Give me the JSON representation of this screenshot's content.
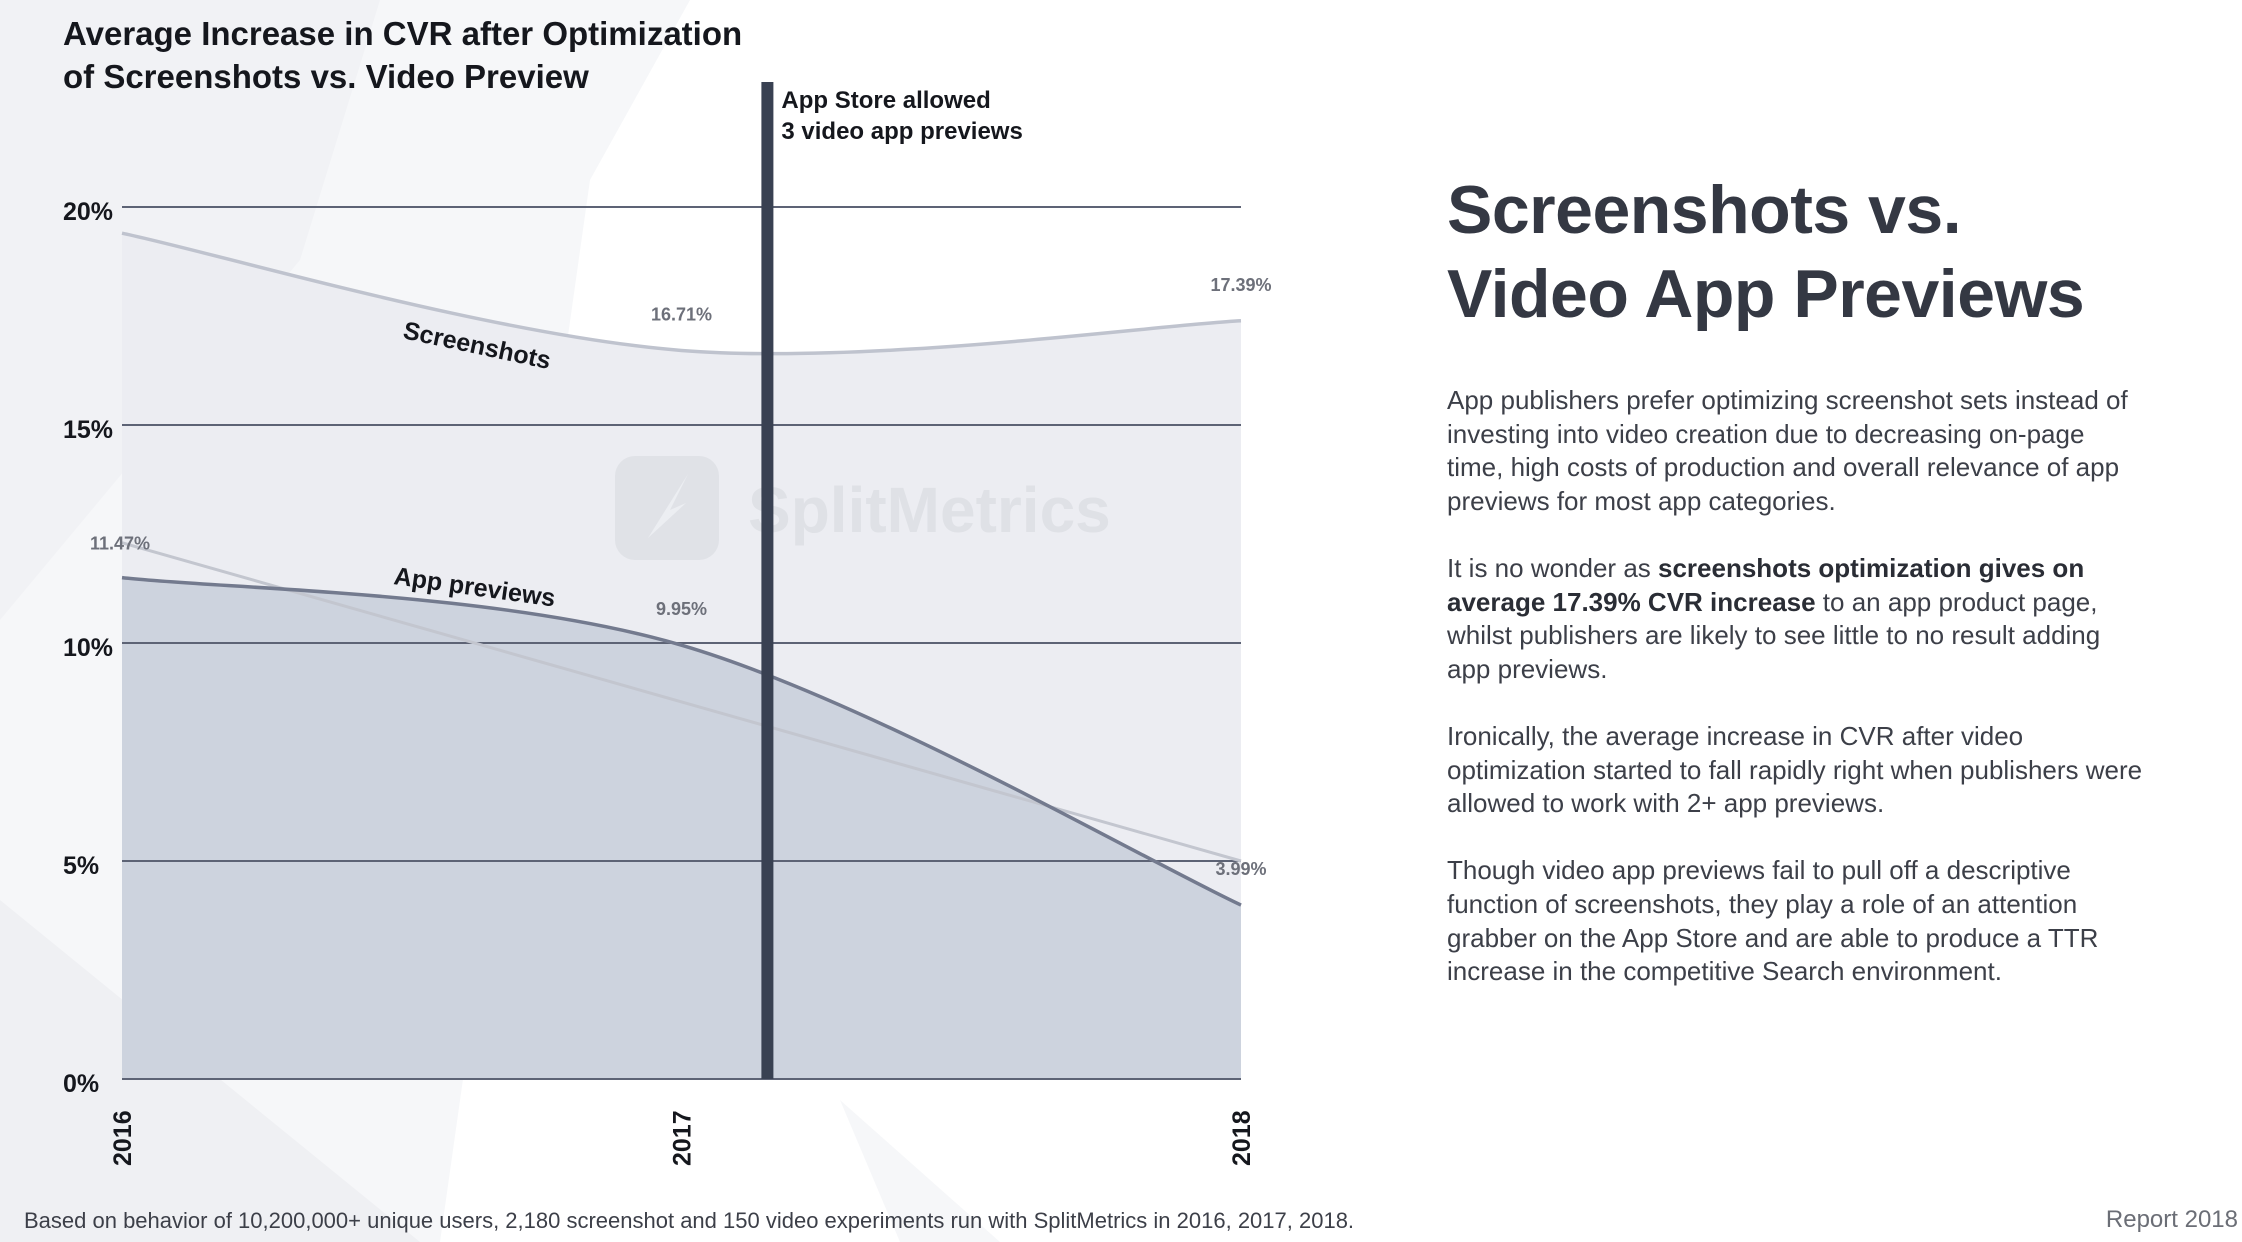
{
  "chart_data": {
    "type": "area",
    "title": "Average Increase in CVR after Optimization of Screenshots vs. Video Preview",
    "title_lines": [
      "Average Increase in CVR after Optimization",
      "of Screenshots vs. Video Preview"
    ],
    "categories": [
      "2016",
      "2017",
      "2018"
    ],
    "ylim": [
      0,
      20
    ],
    "yticks": [
      "0%",
      "5%",
      "10%",
      "15%",
      "20%"
    ],
    "ytick_values": [
      0,
      5,
      10,
      15,
      20
    ],
    "grid": true,
    "series": [
      {
        "name": "Screenshots",
        "values": [
          19.4,
          16.71,
          17.39
        ],
        "labels": [
          "",
          "16.71%",
          "17.39%"
        ],
        "fill": "#ecedf2",
        "line": "#bfc3ce"
      },
      {
        "name": "App previews",
        "values": [
          11.5,
          9.95,
          3.99
        ],
        "labels": [
          "11.47%",
          "9.95%",
          "3.99%"
        ],
        "fill": "#cdd3de",
        "line": "#737a8e"
      }
    ],
    "trend_line": {
      "values": [
        12.3,
        5.0
      ],
      "color": "#c3c6cf"
    },
    "annotation": {
      "x": 2017.2,
      "lines": [
        "App Store allowed",
        "3 video app previews"
      ],
      "color": "#394152"
    },
    "watermark": "SplitMetrics"
  },
  "side": {
    "heading_lines": [
      "Screenshots vs.",
      "Video App Previews"
    ],
    "p1": "App publishers prefer optimizing screenshot sets instead of investing into video creation due to decreasing on-page time, high costs of production and overall relevance of app previews for most app categories.",
    "p2_pre": "It is no wonder as ",
    "p2_bold": "screenshots optimization gives on average 17.39% CVR increase",
    "p2_post": " to an app product page, whilst publishers are likely to see little to no result adding app previews.",
    "p3": "Ironically, the average increase in CVR after video optimization started to fall rapidly right when publishers were allowed to work with 2+ app previews.",
    "p4": "Though video app previews fail to pull off a descriptive function of screenshots, they play a role of an attention grabber on the App Store and are able to produce a TTR increase in the competitive Search environment."
  },
  "footer": {
    "note": "Based on behavior of 10,200,000+ unique users, 2,180 screenshot and 150 video experiments run with SplitMetrics in 2016, 2017, 2018.",
    "report": "Report 2018"
  }
}
